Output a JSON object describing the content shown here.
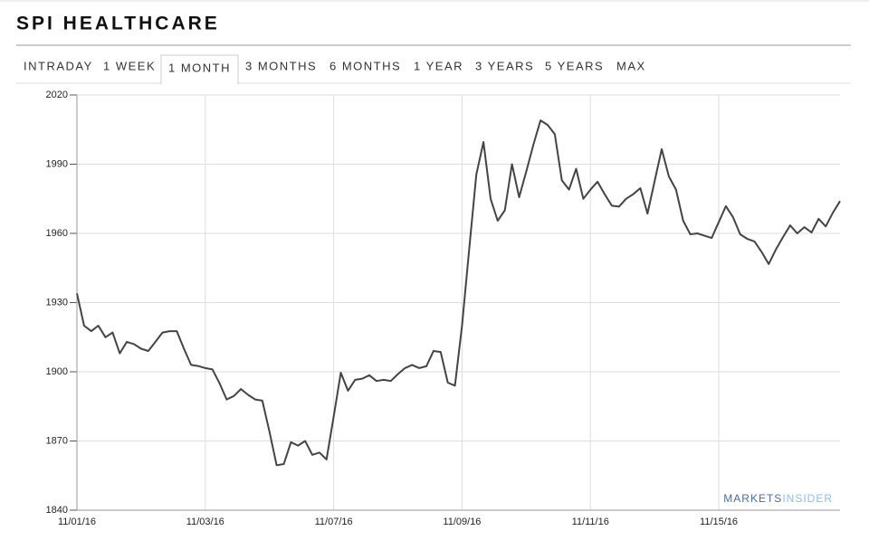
{
  "tabs": [
    "INTRADAY",
    "1 WEEK",
    "1 MONTH",
    "3 MONTHS",
    "6 MONTHS",
    "1 YEAR",
    "3 YEARS",
    "5 YEARS",
    "MAX"
  ],
  "active_tab": 2,
  "watermark": {
    "part1": "MARKETS",
    "part2": "INSIDER"
  },
  "chart_data": {
    "type": "line",
    "title": "SPI HEALTHCARE",
    "color": "#444444",
    "grid": true,
    "categories": [
      "11/01/16",
      null,
      null,
      null,
      null,
      null,
      null,
      null,
      null,
      null,
      null,
      null,
      null,
      null,
      null,
      null,
      null,
      null,
      "11/03/16",
      null,
      null,
      null,
      null,
      null,
      null,
      null,
      null,
      null,
      null,
      null,
      null,
      null,
      null,
      null,
      null,
      null,
      "11/07/16",
      null,
      null,
      null,
      null,
      null,
      null,
      null,
      null,
      null,
      null,
      null,
      null,
      null,
      null,
      null,
      null,
      null,
      "11/09/16",
      null,
      null,
      null,
      null,
      null,
      null,
      null,
      null,
      null,
      null,
      null,
      null,
      null,
      null,
      null,
      null,
      null,
      "11/11/16",
      null,
      null,
      null,
      null,
      null,
      null,
      null,
      null,
      null,
      null,
      null,
      null,
      null,
      null,
      null,
      null,
      null,
      "11/15/16",
      null,
      null,
      null,
      null,
      null,
      null,
      null,
      null,
      null,
      null,
      null,
      null,
      null,
      null,
      null,
      null,
      null
    ],
    "values": [
      1934,
      1920,
      1917.6,
      1920,
      1915,
      1917,
      1908,
      1913,
      1912,
      1910,
      1909,
      1913,
      1917,
      1917.6,
      1917.6,
      1910,
      1903,
      1902.5,
      1901.6,
      1901,
      1895,
      1888,
      1889.5,
      1892.5,
      1890,
      1888,
      1887.5,
      1874,
      1859.5,
      1860,
      1869.5,
      1868,
      1870,
      1864,
      1865,
      1862,
      1880.5,
      1899.6,
      1891.8,
      1896.5,
      1897,
      1898.5,
      1896,
      1896.5,
      1896,
      1899,
      1901.6,
      1903,
      1901.6,
      1902.4,
      1909,
      1908.6,
      1895.3,
      1894,
      1920,
      1953,
      1985.5,
      1999.6,
      1975,
      1965.5,
      1970,
      1990,
      1975.7,
      1986.7,
      1998.4,
      2009,
      2007,
      2003,
      1983,
      1979,
      1988,
      1975,
      1979,
      1982.4,
      1977,
      1972,
      1971.6,
      1975,
      1977,
      1979.6,
      1968.6,
      1982.7,
      1996.5,
      1984.7,
      1979,
      1965.5,
      1959.6,
      1960,
      1959,
      1958,
      1965,
      1971.8,
      1967,
      1959.6,
      1957.6,
      1956.5,
      1952,
      1946.7,
      1953,
      1958.4,
      1963.5,
      1960,
      1962.7,
      1960.4,
      1966.3,
      1963,
      1969,
      1974
    ],
    "ylim": [
      1840,
      2020
    ],
    "yticks": [
      1840,
      1870,
      1900,
      1930,
      1960,
      1990,
      2020
    ]
  }
}
